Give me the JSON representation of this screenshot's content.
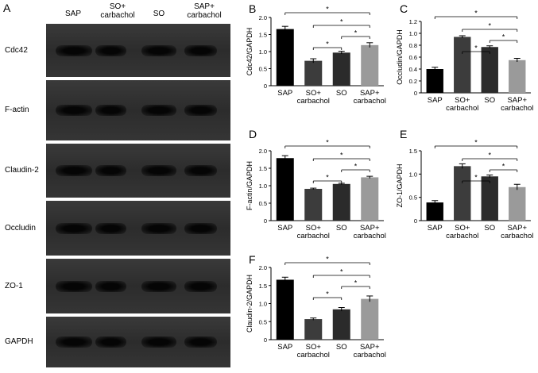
{
  "blot": {
    "letter": "A",
    "columns": [
      "SAP",
      "SO+\ncarbachol",
      "SO",
      "SAP+\ncarbachol"
    ],
    "rows": [
      "Cdc42",
      "F-actin",
      "Claudin-2",
      "Occludin",
      "ZO-1",
      "GAPDH"
    ]
  },
  "chart_data": [
    {
      "panel": "B",
      "type": "bar",
      "ylabel": "Cdc42/GAPDH",
      "categories": [
        "SAP",
        "SO+\ncarbachol",
        "SO",
        "SAP+\ncarbachol"
      ],
      "values": [
        1.66,
        0.73,
        0.97,
        1.19
      ],
      "errors": [
        0.08,
        0.06,
        0.04,
        0.07
      ],
      "colors": [
        "#000000",
        "#3c3c3c",
        "#2b2b2b",
        "#9a9a9a"
      ],
      "ylim": [
        0,
        2.0
      ],
      "yticks": [
        0,
        0.5,
        1.0,
        1.5,
        2.0
      ],
      "significance": "*"
    },
    {
      "panel": "C",
      "type": "bar",
      "ylabel": "Occludin/GAPDH",
      "categories": [
        "SAP",
        "SO+\ncarbachol",
        "SO",
        "SAP+\ncarbachol"
      ],
      "values": [
        0.4,
        0.94,
        0.77,
        0.55
      ],
      "errors": [
        0.03,
        0.02,
        0.02,
        0.03
      ],
      "colors": [
        "#000000",
        "#3c3c3c",
        "#2b2b2b",
        "#9a9a9a"
      ],
      "ylim": [
        0,
        1.2
      ],
      "yticks": [
        0,
        0.2,
        0.4,
        0.6,
        0.8,
        1.0,
        1.2
      ],
      "significance": "*"
    },
    {
      "panel": "D",
      "type": "bar",
      "ylabel": "F-actin/GAPDH",
      "categories": [
        "SAP",
        "SO+\ncarbachol",
        "SO",
        "SAP+\ncarbachol"
      ],
      "values": [
        1.79,
        0.91,
        1.05,
        1.24
      ],
      "errors": [
        0.07,
        0.02,
        0.02,
        0.03
      ],
      "colors": [
        "#000000",
        "#3c3c3c",
        "#2b2b2b",
        "#9a9a9a"
      ],
      "ylim": [
        0,
        2.0
      ],
      "yticks": [
        0,
        0.5,
        1.0,
        1.5,
        2.0
      ],
      "significance": "*"
    },
    {
      "panel": "E",
      "type": "bar",
      "ylabel": "ZO-1/GAPDH",
      "categories": [
        "SAP",
        "SO+\ncarbachol",
        "SO",
        "SAP+\ncarbachol"
      ],
      "values": [
        0.39,
        1.17,
        0.95,
        0.72
      ],
      "errors": [
        0.04,
        0.05,
        0.03,
        0.06
      ],
      "colors": [
        "#000000",
        "#3c3c3c",
        "#2b2b2b",
        "#9a9a9a"
      ],
      "ylim": [
        0,
        1.5
      ],
      "yticks": [
        0,
        0.5,
        1.0,
        1.5
      ],
      "significance": "*"
    },
    {
      "panel": "F",
      "type": "bar",
      "ylabel": "Claudin-2/GAPDH",
      "categories": [
        "SAP",
        "SO+\ncarbachol",
        "SO",
        "SAP+\ncarbachol"
      ],
      "values": [
        1.66,
        0.57,
        0.84,
        1.13
      ],
      "errors": [
        0.07,
        0.03,
        0.05,
        0.08
      ],
      "colors": [
        "#000000",
        "#3c3c3c",
        "#2b2b2b",
        "#9a9a9a"
      ],
      "ylim": [
        0,
        2.0
      ],
      "yticks": [
        0,
        0.5,
        1.0,
        1.5,
        2.0
      ],
      "significance": "*"
    }
  ]
}
